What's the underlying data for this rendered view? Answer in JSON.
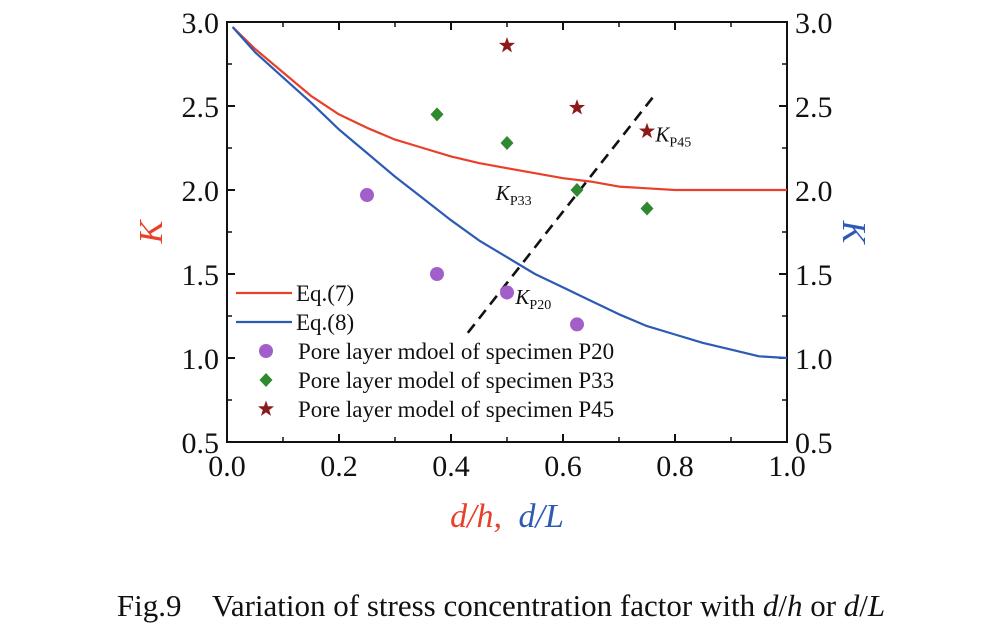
{
  "chart_data": {
    "type": "line",
    "xlabel": {
      "first": "d/h,",
      "second": "d/L"
    },
    "ylabel_left": "K",
    "ylabel_right": "K",
    "xlim": [
      0.0,
      1.0
    ],
    "ylim": [
      0.5,
      3.0
    ],
    "x_ticks": [
      "0.0",
      "0.2",
      "0.4",
      "0.6",
      "0.8",
      "1.0"
    ],
    "y_ticks": [
      "0.5",
      "1.0",
      "1.5",
      "2.0",
      "2.5",
      "3.0"
    ],
    "grid": false,
    "legend_position": "lower-left",
    "colors": {
      "eq7": "#e8402a",
      "eq8": "#2c5ab5",
      "p20": "#a35fc9",
      "p33": "#2f8a2f",
      "p45": "#8b1a1a",
      "xlabel_first": "#e8402a",
      "xlabel_second": "#2c5ab5"
    },
    "series": [
      {
        "name": "Eq.(7)",
        "kind": "line",
        "color_key": "eq7",
        "x": [
          0.01,
          0.05,
          0.1,
          0.15,
          0.2,
          0.25,
          0.3,
          0.35,
          0.4,
          0.45,
          0.5,
          0.55,
          0.6,
          0.65,
          0.7,
          0.75,
          0.8,
          0.85,
          0.9,
          0.95,
          1.0
        ],
        "y": [
          2.97,
          2.84,
          2.7,
          2.56,
          2.45,
          2.37,
          2.3,
          2.25,
          2.2,
          2.16,
          2.13,
          2.1,
          2.07,
          2.05,
          2.02,
          2.01,
          2.0,
          2.0,
          2.0,
          2.0,
          2.0
        ]
      },
      {
        "name": "Eq.(8)",
        "kind": "line",
        "color_key": "eq8",
        "x": [
          0.01,
          0.05,
          0.1,
          0.15,
          0.2,
          0.25,
          0.3,
          0.35,
          0.4,
          0.45,
          0.5,
          0.55,
          0.6,
          0.65,
          0.7,
          0.75,
          0.8,
          0.85,
          0.9,
          0.95,
          1.0
        ],
        "y": [
          2.97,
          2.82,
          2.67,
          2.52,
          2.36,
          2.22,
          2.08,
          1.95,
          1.82,
          1.7,
          1.6,
          1.5,
          1.42,
          1.34,
          1.26,
          1.19,
          1.14,
          1.09,
          1.05,
          1.01,
          1.0
        ]
      },
      {
        "name": "Pore layer mdoel of specimen P20",
        "kind": "scatter",
        "marker": "circle",
        "color_key": "p20",
        "x": [
          0.25,
          0.375,
          0.5,
          0.625
        ],
        "y": [
          1.97,
          1.5,
          1.39,
          1.2
        ]
      },
      {
        "name": "Pore layer model of specimen P33",
        "kind": "scatter",
        "marker": "diamond",
        "color_key": "p33",
        "x": [
          0.375,
          0.5,
          0.625,
          0.75
        ],
        "y": [
          2.45,
          2.28,
          2.0,
          1.89
        ]
      },
      {
        "name": "Pore layer model of specimen P45",
        "kind": "scatter",
        "marker": "star",
        "color_key": "p45",
        "x": [
          0.5,
          0.625,
          0.75
        ],
        "y": [
          2.86,
          2.49,
          2.35
        ]
      }
    ],
    "trend_line": {
      "x": [
        0.43,
        0.76
      ],
      "y": [
        1.15,
        2.55
      ],
      "style": "dashed"
    },
    "annotations": [
      {
        "id": "kp20",
        "main": "K",
        "sub": "P20",
        "x": 0.515,
        "y": 1.32
      },
      {
        "id": "kp33",
        "main": "K",
        "sub": "P33",
        "x": 0.48,
        "y": 1.94
      },
      {
        "id": "kp45",
        "main": "K",
        "sub": "P45",
        "x": 0.765,
        "y": 2.29
      }
    ]
  },
  "caption": {
    "prefix": "Fig.9    Variation of stress concentration factor with ",
    "var1": "d",
    "sep1": "/",
    "var2": "h",
    "middle": " or ",
    "var3": "d",
    "sep2": "/",
    "var4": "L"
  }
}
